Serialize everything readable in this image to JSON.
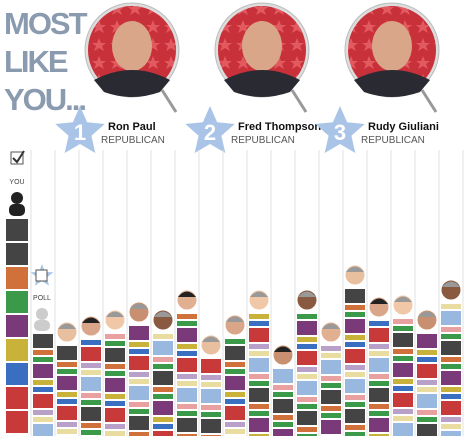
{
  "header": {
    "title_lines": [
      "MOST",
      "LIKE",
      "YOU..."
    ]
  },
  "ranking": [
    {
      "rank": "1",
      "name": "Ron Paul",
      "party": "REPUBLICAN"
    },
    {
      "rank": "2",
      "name": "Fred Thompson",
      "party": "REPUBLICAN"
    },
    {
      "rank": "3",
      "name": "Rudy Giuliani",
      "party": "REPUBLICAN"
    }
  ],
  "columns": {
    "you": "YOU",
    "poll": "POLL"
  }
}
